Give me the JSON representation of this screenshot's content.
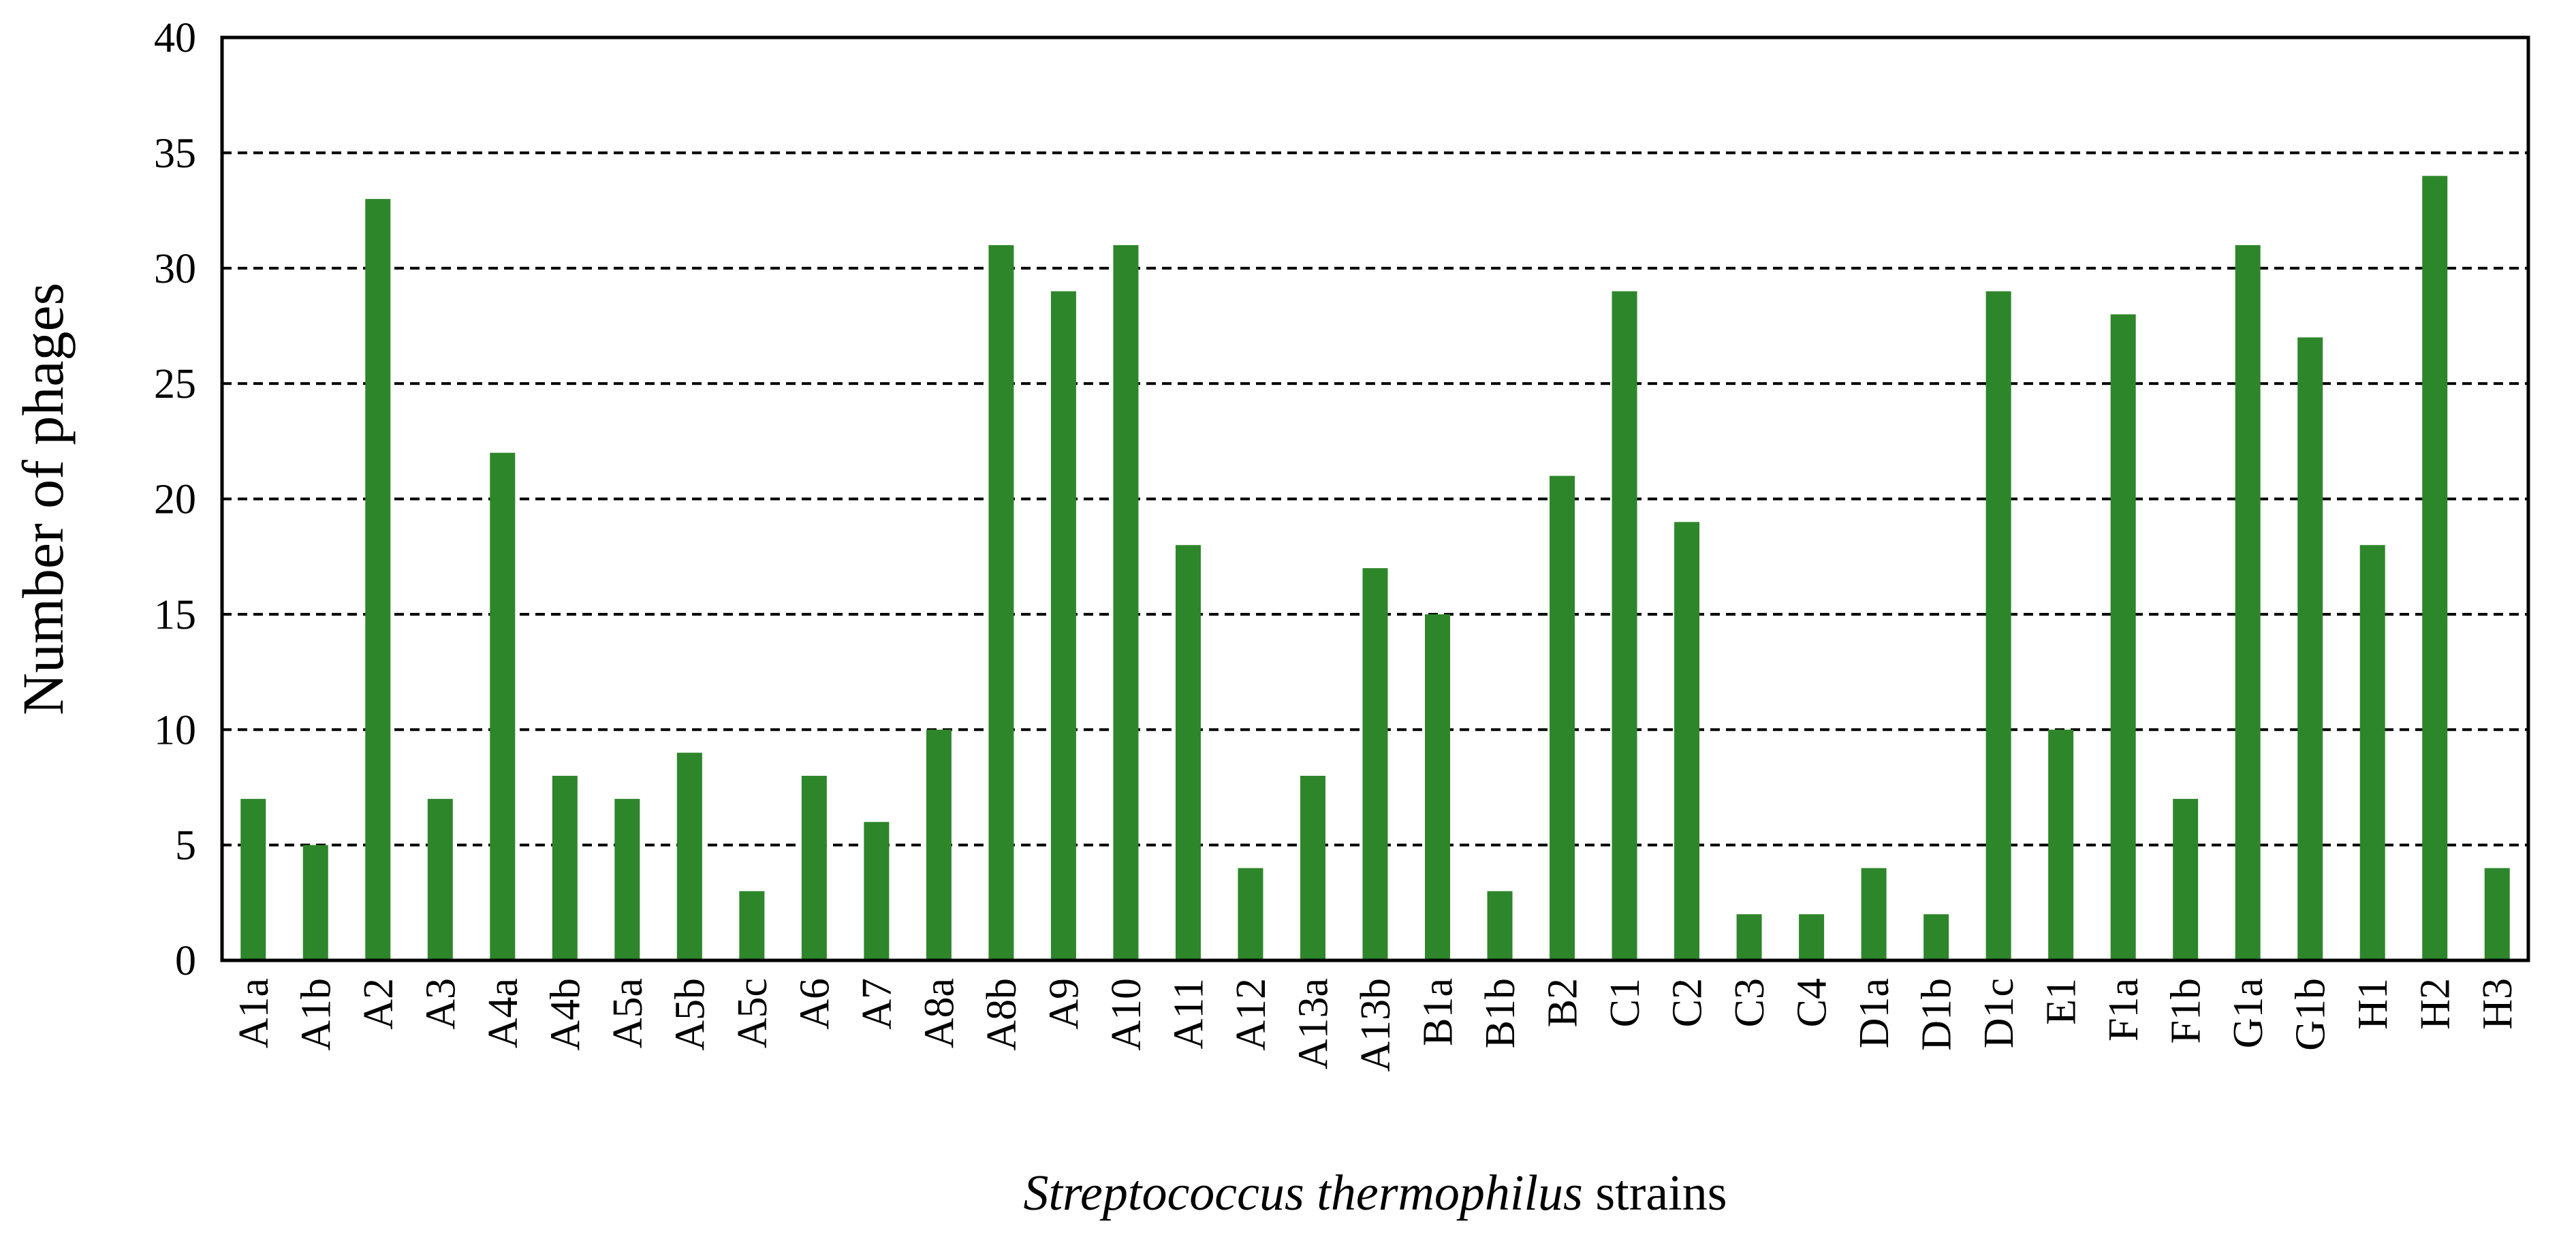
{
  "chart_data": {
    "type": "bar",
    "categories": [
      "A1a",
      "A1b",
      "A2",
      "A3",
      "A4a",
      "A4b",
      "A5a",
      "A5b",
      "A5c",
      "A6",
      "A7",
      "A8a",
      "A8b",
      "A9",
      "A10",
      "A11",
      "A12",
      "A13a",
      "A13b",
      "B1a",
      "B1b",
      "B2",
      "C1",
      "C2",
      "C3",
      "C4",
      "D1a",
      "D1b",
      "D1c",
      "E1",
      "F1a",
      "F1b",
      "G1a",
      "G1b",
      "H1",
      "H2",
      "H3"
    ],
    "values": [
      7,
      5,
      33,
      7,
      22,
      8,
      7,
      9,
      3,
      8,
      6,
      10,
      31,
      29,
      31,
      18,
      4,
      8,
      17,
      15,
      3,
      21,
      29,
      19,
      2,
      2,
      4,
      2,
      29,
      10,
      28,
      7,
      31,
      27,
      18,
      34,
      4
    ],
    "ylim": [
      0,
      40
    ],
    "yticks": [
      0,
      5,
      10,
      15,
      20,
      25,
      30,
      35,
      40
    ],
    "ylabel": "Number of phages",
    "xlabel_italic": "Streptococcus thermophilus",
    "xlabel_rest": " strains",
    "grid": "horizontal dashed",
    "bar_color": "#2e862a"
  }
}
